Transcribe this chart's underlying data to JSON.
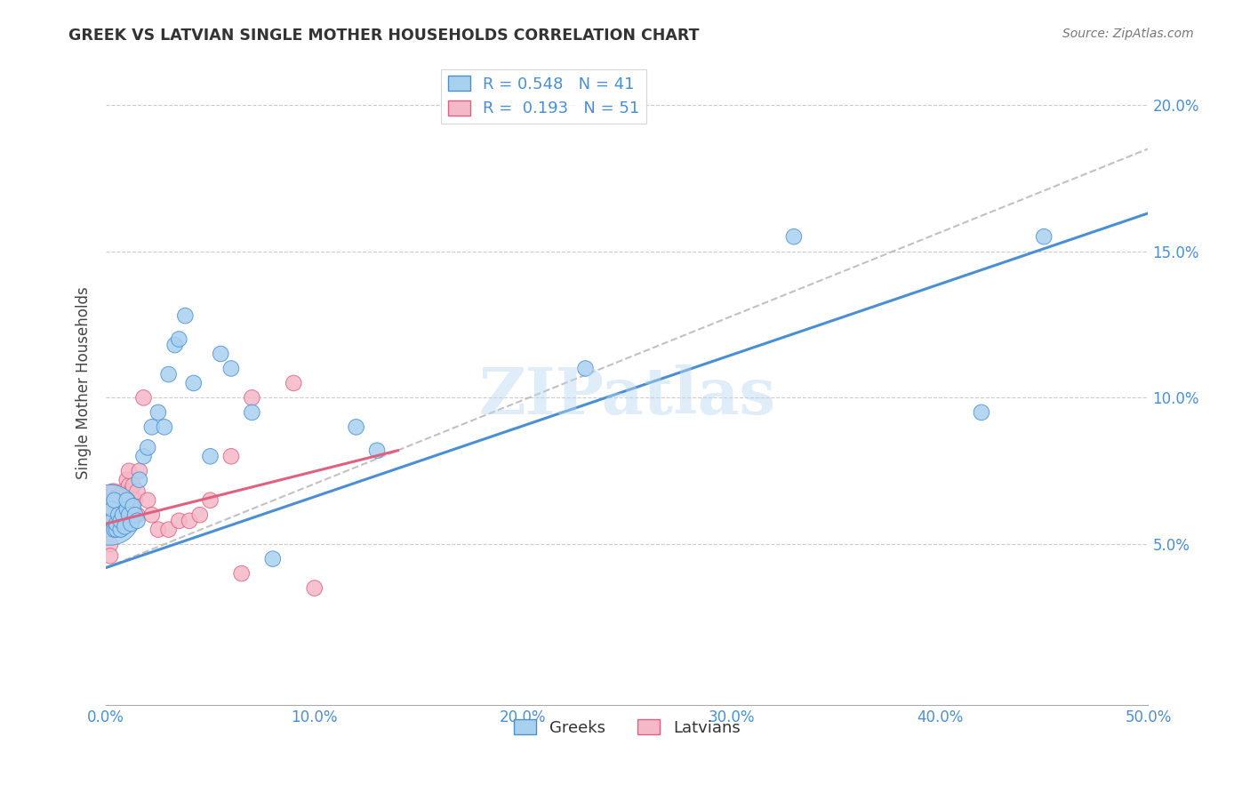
{
  "title": "GREEK VS LATVIAN SINGLE MOTHER HOUSEHOLDS CORRELATION CHART",
  "source": "Source: ZipAtlas.com",
  "ylabel_label": "Single Mother Households",
  "xlim": [
    0,
    0.5
  ],
  "ylim": [
    -0.005,
    0.215
  ],
  "xticks": [
    0.0,
    0.1,
    0.2,
    0.3,
    0.4,
    0.5
  ],
  "yticks": [
    0.05,
    0.1,
    0.15,
    0.2
  ],
  "xtick_labels": [
    "0.0%",
    "10.0%",
    "20.0%",
    "30.0%",
    "40.0%",
    "50.0%"
  ],
  "ytick_labels": [
    "5.0%",
    "10.0%",
    "15.0%",
    "20.0%"
  ],
  "greek_color": "#A8D1F0",
  "latvian_color": "#F5B8C8",
  "greek_line_color": "#4A8FD4",
  "latvian_line_color": "#E06080",
  "greek_R": 0.548,
  "greek_N": 41,
  "latvian_R": 0.193,
  "latvian_N": 51,
  "watermark_text": "ZIPatlas",
  "legend_label_greek": "Greeks",
  "legend_label_latvian": "Latvians",
  "greek_x": [
    0.002,
    0.003,
    0.003,
    0.004,
    0.004,
    0.005,
    0.005,
    0.006,
    0.007,
    0.007,
    0.008,
    0.009,
    0.01,
    0.01,
    0.011,
    0.012,
    0.013,
    0.014,
    0.015,
    0.016,
    0.018,
    0.02,
    0.022,
    0.025,
    0.028,
    0.03,
    0.033,
    0.035,
    0.038,
    0.042,
    0.05,
    0.055,
    0.06,
    0.07,
    0.08,
    0.12,
    0.13,
    0.23,
    0.33,
    0.42,
    0.45
  ],
  "greek_y": [
    0.06,
    0.058,
    0.062,
    0.055,
    0.065,
    0.055,
    0.057,
    0.06,
    0.055,
    0.058,
    0.06,
    0.056,
    0.062,
    0.065,
    0.06,
    0.057,
    0.063,
    0.06,
    0.058,
    0.072,
    0.08,
    0.083,
    0.09,
    0.095,
    0.09,
    0.108,
    0.118,
    0.12,
    0.128,
    0.105,
    0.08,
    0.115,
    0.11,
    0.095,
    0.045,
    0.09,
    0.082,
    0.11,
    0.155,
    0.095,
    0.155
  ],
  "greek_size": [
    40,
    40,
    40,
    40,
    40,
    40,
    40,
    40,
    40,
    40,
    40,
    40,
    40,
    40,
    40,
    40,
    40,
    40,
    40,
    40,
    40,
    40,
    40,
    40,
    40,
    40,
    40,
    40,
    40,
    40,
    40,
    40,
    40,
    40,
    40,
    40,
    40,
    40,
    40,
    40,
    40
  ],
  "greek_size_special": 600,
  "greek_special_idx": 0,
  "latvian_x": [
    0.001,
    0.001,
    0.002,
    0.002,
    0.003,
    0.003,
    0.003,
    0.004,
    0.004,
    0.004,
    0.005,
    0.005,
    0.005,
    0.006,
    0.006,
    0.007,
    0.007,
    0.007,
    0.008,
    0.008,
    0.008,
    0.009,
    0.009,
    0.01,
    0.01,
    0.01,
    0.011,
    0.011,
    0.012,
    0.012,
    0.013,
    0.013,
    0.014,
    0.014,
    0.015,
    0.015,
    0.016,
    0.018,
    0.02,
    0.022,
    0.025,
    0.03,
    0.035,
    0.04,
    0.045,
    0.05,
    0.06,
    0.065,
    0.07,
    0.09,
    0.1
  ],
  "latvian_y": [
    0.058,
    0.054,
    0.05,
    0.046,
    0.06,
    0.065,
    0.068,
    0.058,
    0.063,
    0.068,
    0.058,
    0.062,
    0.066,
    0.058,
    0.063,
    0.06,
    0.065,
    0.055,
    0.062,
    0.068,
    0.058,
    0.06,
    0.065,
    0.065,
    0.068,
    0.072,
    0.07,
    0.075,
    0.06,
    0.068,
    0.065,
    0.07,
    0.06,
    0.065,
    0.06,
    0.068,
    0.075,
    0.1,
    0.065,
    0.06,
    0.055,
    0.055,
    0.058,
    0.058,
    0.06,
    0.065,
    0.08,
    0.04,
    0.1,
    0.105,
    0.035
  ],
  "latvian_size": [
    40,
    40,
    40,
    40,
    40,
    40,
    40,
    40,
    40,
    40,
    40,
    40,
    40,
    40,
    40,
    40,
    40,
    40,
    40,
    40,
    40,
    40,
    40,
    40,
    40,
    40,
    40,
    40,
    40,
    40,
    40,
    40,
    40,
    40,
    40,
    40,
    40,
    40,
    40,
    40,
    40,
    40,
    40,
    40,
    40,
    40,
    40,
    40,
    40,
    40,
    40
  ],
  "greek_line_x0": 0.0,
  "greek_line_y0": 0.042,
  "greek_line_x1": 0.5,
  "greek_line_y1": 0.163,
  "latvian_line_x0": 0.0,
  "latvian_line_y0": 0.057,
  "latvian_line_x1": 0.14,
  "latvian_line_y1": 0.082,
  "dash_line_x0": 0.0,
  "dash_line_y0": 0.042,
  "dash_line_x1": 0.5,
  "dash_line_y1": 0.185
}
